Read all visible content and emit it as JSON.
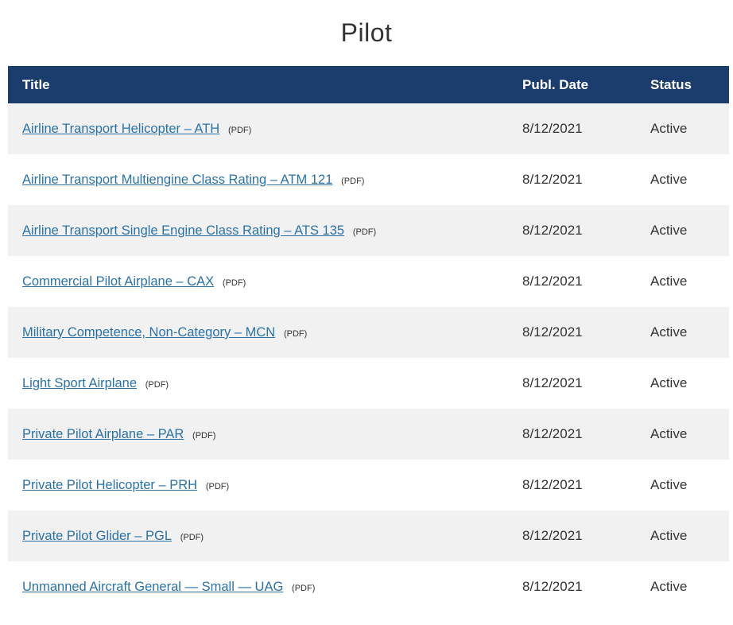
{
  "page": {
    "title": "Pilot"
  },
  "colors": {
    "header_bg": "#1b3d6d",
    "header_text": "#ffffff",
    "link": "#2a72a8",
    "row_alt_bg": "#f1f1f1",
    "body_text": "#333333"
  },
  "table": {
    "headers": [
      {
        "label": "Title"
      },
      {
        "label": "Publ. Date"
      },
      {
        "label": "Status"
      }
    ],
    "rows": [
      {
        "title": "Airline Transport Helicopter – ATH",
        "pdf": "(PDF)",
        "date": "8/12/2021",
        "status": "Active"
      },
      {
        "title": "Airline Transport Multiengine Class Rating – ATM 121",
        "pdf": "(PDF)",
        "date": "8/12/2021",
        "status": "Active"
      },
      {
        "title": "Airline Transport Single Engine Class Rating – ATS 135",
        "pdf": "(PDF)",
        "date": "8/12/2021",
        "status": "Active"
      },
      {
        "title": "Commercial Pilot Airplane – CAX",
        "pdf": "(PDF)",
        "date": "8/12/2021",
        "status": "Active"
      },
      {
        "title": "Military Competence, Non-Category – MCN",
        "pdf": "(PDF)",
        "date": "8/12/2021",
        "status": "Active"
      },
      {
        "title": "Light Sport Airplane",
        "pdf": "(PDF)",
        "date": "8/12/2021",
        "status": "Active"
      },
      {
        "title": "Private Pilot Airplane – PAR",
        "pdf": "(PDF)",
        "date": "8/12/2021",
        "status": "Active"
      },
      {
        "title": "Private Pilot Helicopter – PRH",
        "pdf": "(PDF)",
        "date": "8/12/2021",
        "status": "Active"
      },
      {
        "title": "Private Pilot Glider – PGL",
        "pdf": "(PDF)",
        "date": "8/12/2021",
        "status": "Active"
      },
      {
        "title": "Unmanned Aircraft General — Small — UAG",
        "pdf": "(PDF)",
        "date": "8/12/2021",
        "status": "Active"
      }
    ]
  }
}
